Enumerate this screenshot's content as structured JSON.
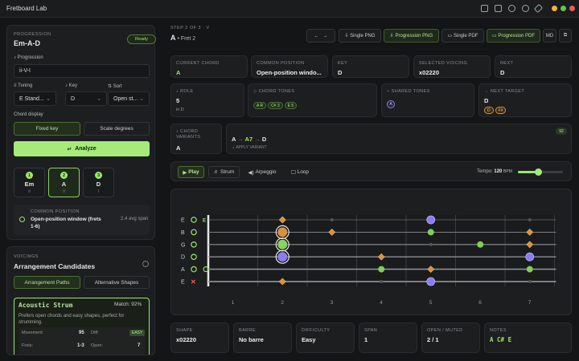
{
  "app": {
    "title": "Fretboard Lab"
  },
  "sidebar": {
    "section_label": "PROGRESSION",
    "progression_title": "Em-A-D",
    "status": "Ready",
    "progression_label": "Progression",
    "progression_value": "ii-V-I",
    "tuning_label": "Tuning",
    "tuning_value": "E Stand...",
    "key_label": "Key",
    "key_value": "D",
    "sort_label": "Sort",
    "sort_value": "Open st...",
    "chord_display_label": "Chord display",
    "display_opt_1": "Fixed key",
    "display_opt_2": "Scale degrees",
    "analyze_label": "Analyze",
    "chords": [
      {
        "num": "1",
        "name": "Em",
        "sub": "ii"
      },
      {
        "num": "2",
        "name": "A",
        "sub": "V"
      },
      {
        "num": "3",
        "name": "D",
        "sub": "I"
      }
    ],
    "common_label": "COMMON POSITION",
    "common_value": "Open-position window (frets 1-6)",
    "span_text": "2.4 avg span",
    "voicings_label": "VOICINGS",
    "candidates_title": "Arrangement Candidates",
    "tab_paths": "Arrangement Paths",
    "tab_alt": "Alternative Shapes",
    "candidate": {
      "name": "Acoustic Strum",
      "match": "Match: 92%",
      "desc": "Prefers open chords and easy shapes, perfect for strumming.",
      "movement_label": "Movement:",
      "movement_value": "95",
      "diff_label": "Diff:",
      "diff_value": "EASY",
      "frets_label": "Frets:",
      "frets_value": "1-3",
      "open_label": "Open:",
      "open_value": "7"
    }
  },
  "header": {
    "step": "STEP 2 OF 3 · V",
    "chord": "A",
    "fret": "• Fret 2",
    "buttons": [
      "Single PNG",
      "Progression PNG",
      "Single PDF",
      "Progression PDF",
      "MD"
    ]
  },
  "cards": {
    "current_chord": {
      "label": "CURRENT CHORD",
      "value": "A"
    },
    "common_position": {
      "label": "COMMON POSITION",
      "value": "Open-position windo..."
    },
    "key": {
      "label": "KEY",
      "value": "D"
    },
    "selected_voicing": {
      "label": "SELECTED VOICING",
      "value": "x02220"
    },
    "next": {
      "label": "NEXT",
      "value": "D"
    },
    "role": {
      "label": "ROLE",
      "value": "5",
      "sub": "in D"
    },
    "chord_tones": {
      "label": "CHORD TONES",
      "tones": [
        "A R",
        "C# 3",
        "E 5"
      ]
    },
    "shared_tones": {
      "label": "SHARED TONES",
      "tones": [
        "A"
      ]
    },
    "next_target": {
      "label": "NEXT TARGET",
      "value": "D",
      "tones": [
        "D",
        "F#"
      ]
    },
    "variants": {
      "label": "CHORD VARIANTS",
      "value": "A",
      "chain_a": "A",
      "chain_b": "A7",
      "chain_c": "D",
      "apply": "APPLY VARIANT",
      "badge": "92"
    }
  },
  "playback": {
    "play": "Play",
    "strum": "Strum",
    "arpeggio": "Arpeggio",
    "loop": "Loop",
    "tempo_label": "Tempo:",
    "tempo_value": "120",
    "tempo_unit": "BPM",
    "tempo_fraction": 0.45
  },
  "fretboard": {
    "strings": [
      "E",
      "B",
      "G",
      "D",
      "A",
      "E"
    ],
    "string_state": [
      "E",
      "o",
      "o",
      "o",
      "o",
      "x"
    ],
    "fret_numbers": [
      "1",
      "2",
      "3",
      "4",
      "5",
      "6",
      "7"
    ]
  },
  "footer": {
    "shape": {
      "label": "SHAPE",
      "value": "x02220"
    },
    "barre": {
      "label": "BARRE",
      "value": "No barre"
    },
    "difficulty": {
      "label": "DIFFICULTY",
      "value": "Easy"
    },
    "span": {
      "label": "SPAN",
      "value": "1"
    },
    "open_muted": {
      "label": "OPEN / MUTED",
      "value": "2 / 1"
    },
    "notes": {
      "label": "NOTES",
      "value": "A C# E"
    }
  },
  "colors": {
    "accent": "#9be86a",
    "bg": "#141516",
    "panel": "#1d1e20",
    "purple": "#8b7cf0",
    "orange": "#d7923e"
  }
}
